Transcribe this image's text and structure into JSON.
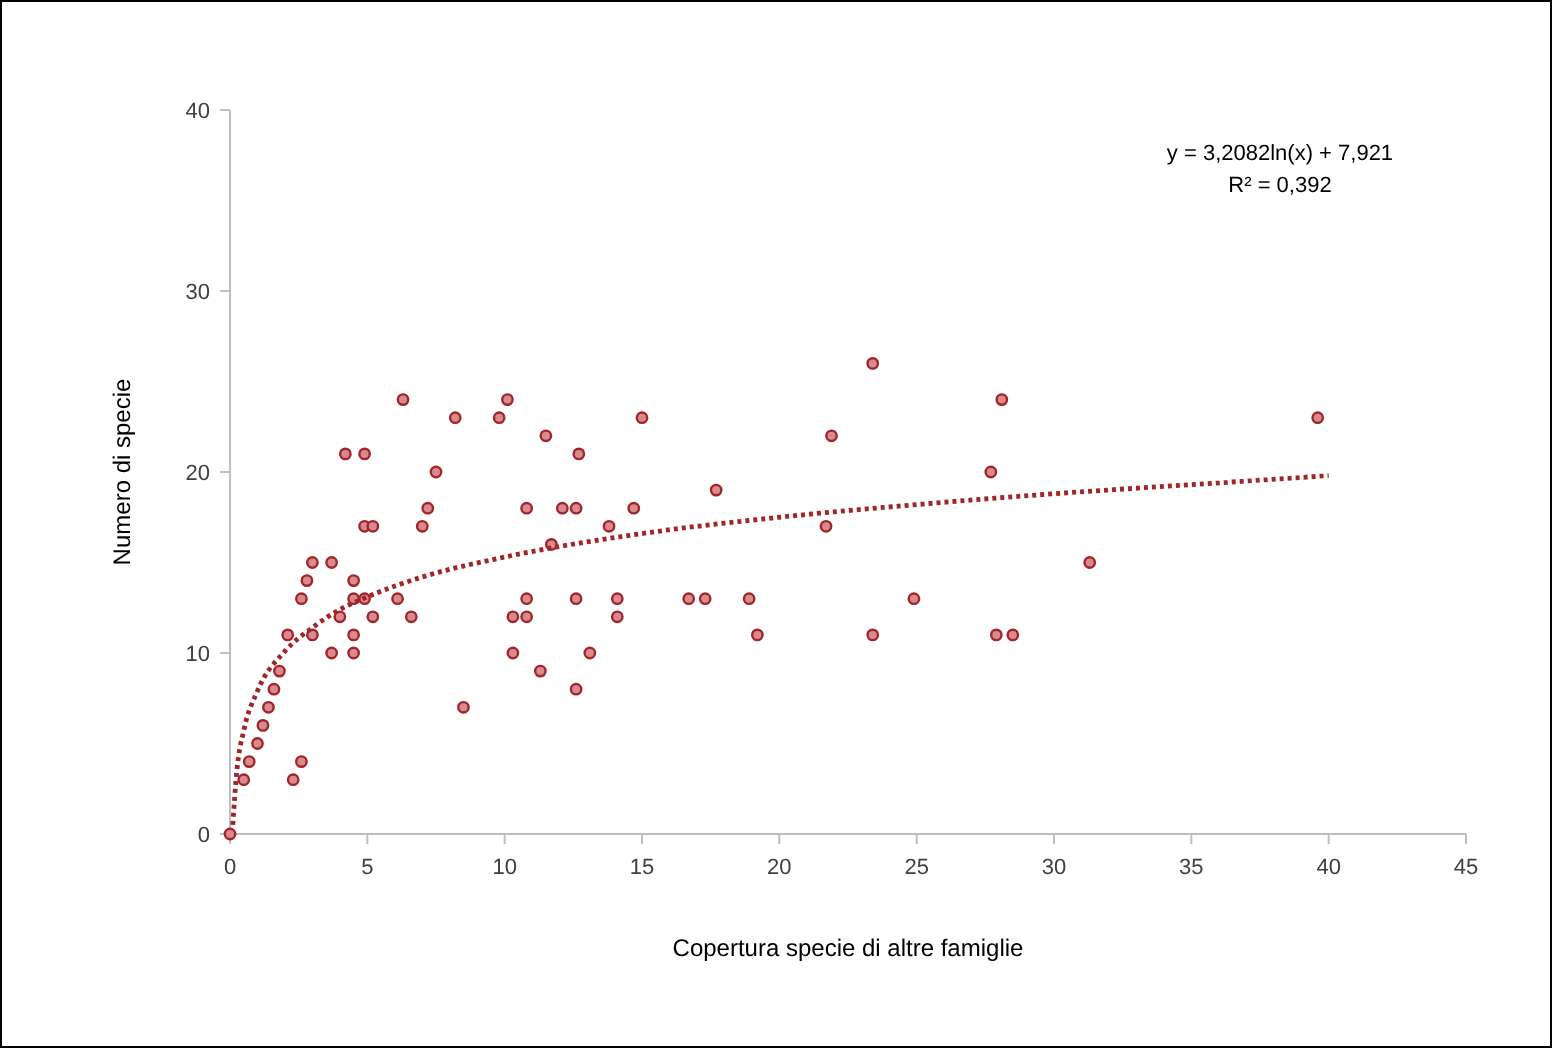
{
  "chart_data": {
    "type": "scatter",
    "xlabel": "Copertura specie di altre famiglie",
    "ylabel": "Numero di specie",
    "annotations": [
      "y = 3,2082ln(x) + 7,921",
      "R² = 0,392"
    ],
    "xlim": [
      0,
      45
    ],
    "xticks": [
      0,
      5,
      10,
      15,
      20,
      25,
      30,
      35,
      40,
      45
    ],
    "ylim": [
      0,
      40
    ],
    "yticks": [
      0,
      10,
      20,
      30,
      40
    ],
    "grid": false,
    "series": [
      {
        "color": "#a0262c",
        "marker": "circle",
        "x": [
          0,
          0.5,
          0.7,
          1.0,
          1.2,
          1.4,
          1.6,
          1.8,
          2.1,
          2.3,
          2.6,
          2.6,
          2.8,
          3.0,
          3.0,
          3.7,
          3.7,
          4.0,
          4.2,
          4.5,
          4.5,
          4.5,
          4.5,
          4.9,
          4.9,
          5.2,
          4.9,
          5.2,
          6.1,
          6.3,
          6.6,
          7.0,
          7.2,
          7.5,
          8.2,
          8.5,
          10.1,
          9.8,
          11.5,
          15.0,
          12.7,
          10.8,
          12.1,
          12.6,
          14.7,
          17.7,
          21.9,
          13.8,
          11.7,
          21.7,
          10.8,
          12.6,
          14.1,
          16.7,
          17.3,
          18.9,
          10.3,
          10.8,
          14.1,
          19.2,
          10.3,
          13.1,
          11.3,
          12.6,
          23.4,
          28.1,
          27.7,
          39.6,
          31.3,
          24.9,
          23.4,
          27.9,
          28.5
        ],
        "values": [
          0,
          3,
          4,
          5,
          6,
          7,
          8,
          9,
          11,
          3,
          4,
          13,
          14,
          15,
          11,
          15,
          10,
          12,
          21,
          14,
          13,
          11,
          10,
          21,
          17,
          17,
          13,
          12,
          13,
          24,
          12,
          17,
          18,
          20,
          23,
          7,
          24,
          23,
          22,
          23,
          21,
          18,
          18,
          18,
          18,
          19,
          22,
          17,
          16,
          17,
          13,
          13,
          13,
          13,
          13,
          13,
          12,
          12,
          12,
          11,
          10,
          10,
          9,
          8,
          26,
          24,
          20,
          23,
          15,
          13,
          11,
          11,
          11
        ]
      },
      {
        "type": "line",
        "color": "#a0262c",
        "line_style": "dotted",
        "marker": "none",
        "x": [
          0.1,
          0.25,
          0.5,
          1,
          2,
          3,
          4,
          5,
          7,
          10,
          15,
          20,
          25,
          30,
          35,
          40
        ],
        "values": [
          0.5,
          3.5,
          5.7,
          7.9,
          10.1,
          11.4,
          12.4,
          13.1,
          14.2,
          15.3,
          16.6,
          17.5,
          18.2,
          18.8,
          19.3,
          19.8
        ]
      }
    ]
  }
}
